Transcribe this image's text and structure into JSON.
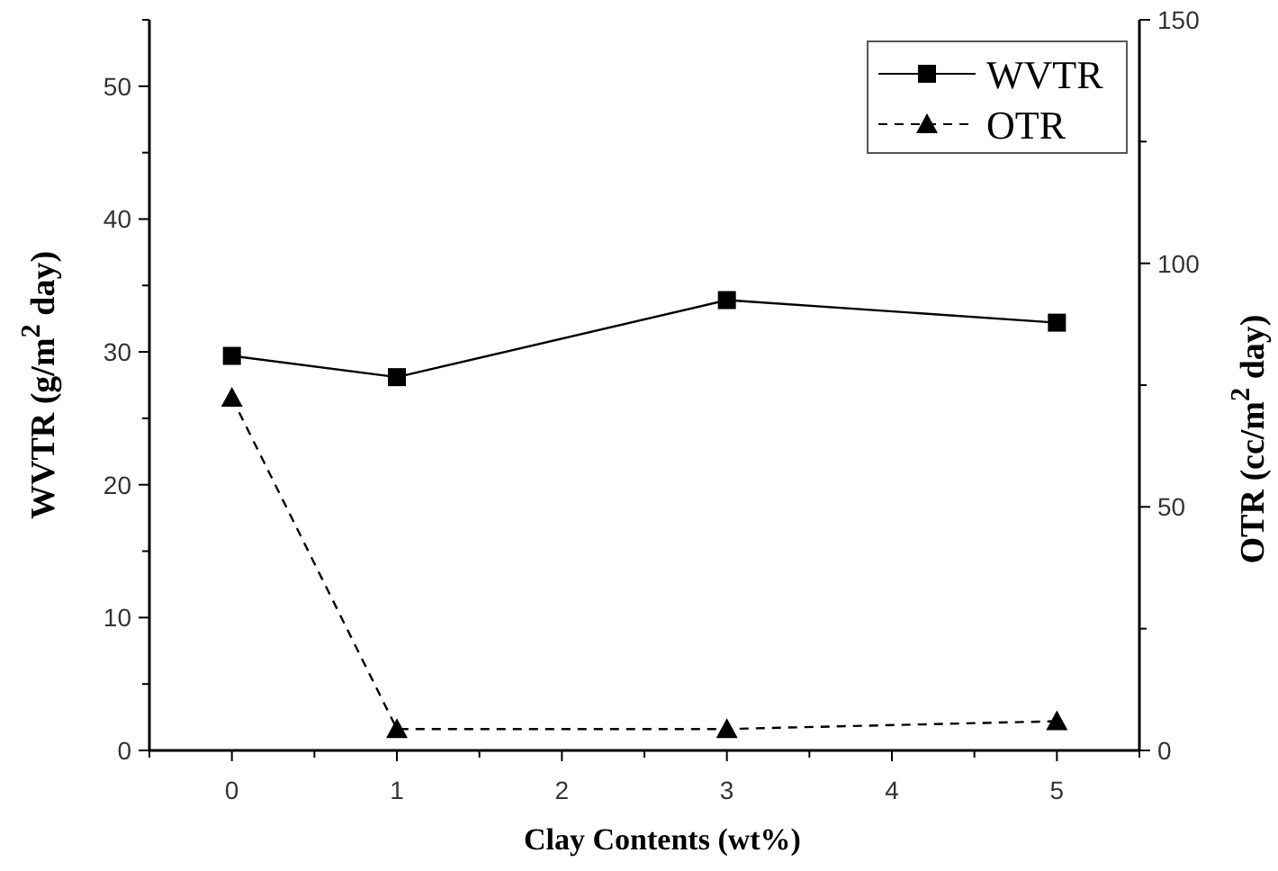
{
  "chart_data": {
    "type": "line",
    "xlabel": "Clay Contents  (wt%)",
    "ylabel": "WVTR (g/m$^{2}$ day)",
    "y2label": "OTR (cc/m$^{2}$ day)",
    "x": [
      0,
      1,
      3,
      5
    ],
    "xlim": [
      -0.5,
      5.5
    ],
    "xticks": [
      {
        "value": -0.5,
        "label": null
      },
      0,
      {
        "value": 0.5,
        "label": null
      },
      1,
      {
        "value": 1.5,
        "label": null
      },
      2,
      {
        "value": 2.5,
        "label": null
      },
      3,
      {
        "value": 3.5,
        "label": null
      },
      4,
      {
        "value": 4.5,
        "label": null
      },
      5,
      {
        "value": 5.5,
        "label": null
      }
    ],
    "ylim": [
      0,
      55
    ],
    "yticks": [
      0,
      {
        "value": 5,
        "label": null
      },
      10,
      {
        "value": 15,
        "label": null
      },
      20,
      {
        "value": 25,
        "label": null
      },
      30,
      {
        "value": 35,
        "label": null
      },
      40,
      {
        "value": 45,
        "label": null
      },
      50,
      {
        "value": 55,
        "label": null
      }
    ],
    "y2lim": [
      0,
      150
    ],
    "y2ticks": [
      0,
      {
        "value": 25,
        "label": null
      },
      50,
      {
        "value": 75,
        "label": null
      },
      100,
      {
        "value": 125,
        "label": null
      },
      150
    ],
    "series": [
      {
        "name": "WVTR",
        "color": "#000000",
        "values": [
          29.7,
          28.1,
          33.9,
          32.2
        ],
        "marker": "square",
        "line_style": "solid"
      },
      {
        "name": "OTR",
        "color": "#000000",
        "values": [
          72.4,
          4.4,
          4.4,
          6.0
        ],
        "axis": "y2",
        "marker": "triangle",
        "line_style": "dashed"
      }
    ],
    "legend": "top right",
    "grid": false
  }
}
